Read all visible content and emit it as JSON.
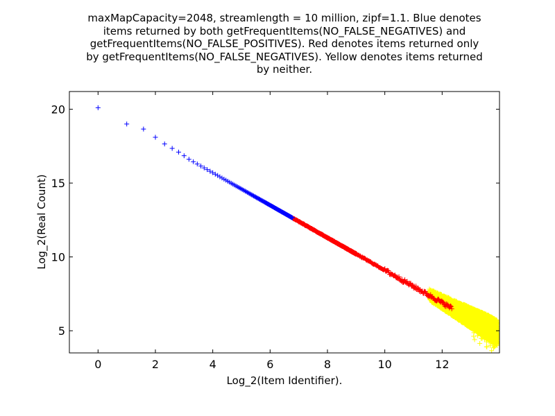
{
  "chart_data": {
    "type": "scatter",
    "title": "maxMapCapacity=2048, streamlength = 10 million, zipf=1.1. Blue denotes items returned by both getFrequentItems(NO_FALSE_NEGATIVES) and getFrequentItems(NO_FALSE_POSITIVES). Red denotes items returned only by getFrequentItems(NO_FALSE_NEGATIVES). Yellow denotes items returned by neither.",
    "title_lines": [
      "maxMapCapacity=2048, streamlength = 10 million, zipf=1.1. Blue denotes",
      "items returned by both getFrequentItems(NO_FALSE_NEGATIVES) and",
      "getFrequentItems(NO_FALSE_POSITIVES). Red denotes items returned only",
      "by getFrequentItems(NO_FALSE_NEGATIVES). Yellow denotes items returned",
      "by neither."
    ],
    "xlabel": "Log_2(Item Identifier).",
    "ylabel": "Log_2(Real Count)",
    "xlim": [
      -1,
      14
    ],
    "ylim": [
      3.5,
      21.2
    ],
    "xticks": [
      0,
      2,
      4,
      6,
      8,
      10,
      12
    ],
    "yticks": [
      5,
      10,
      15,
      20
    ],
    "grid": false,
    "legend": "none",
    "marker": "+",
    "series": [
      {
        "color": "#0000ff",
        "description": "returned by both queries",
        "model": "y = 20.1 - 1.1 * x",
        "x_range": [
          0,
          6.78
        ],
        "points": [
          [
            0,
            20.1
          ],
          [
            1,
            19.0
          ],
          [
            1.585,
            18.66
          ],
          [
            2,
            18.1
          ],
          [
            2.32,
            17.65
          ],
          [
            2.585,
            17.35
          ],
          [
            2.81,
            17.1
          ],
          [
            3,
            16.85
          ],
          [
            6.78,
            12.63
          ]
        ]
      },
      {
        "color": "#ff0000",
        "description": "returned only by getFrequentItems(NO_FALSE_NEGATIVES)",
        "model": "y = 20.1 - 1.1 * x",
        "x_range": [
          6.78,
          12.3
        ],
        "points": [
          [
            6.8,
            12.6
          ],
          [
            8.0,
            11.3
          ],
          [
            9.0,
            10.2
          ],
          [
            10.0,
            9.1
          ],
          [
            11.0,
            8.0
          ],
          [
            12.3,
            6.7
          ]
        ]
      },
      {
        "color": "#ffff00",
        "description": "returned by neither",
        "model": "y = 20.1 - 1.1 * x",
        "x_range": [
          8.5,
          13.92
        ],
        "points": [
          [
            8.5,
            10.75
          ],
          [
            10.0,
            9.1
          ],
          [
            11.0,
            8.0
          ],
          [
            12.0,
            6.9
          ],
          [
            13.0,
            5.8
          ],
          [
            13.9,
            4.8
          ]
        ]
      }
    ]
  }
}
